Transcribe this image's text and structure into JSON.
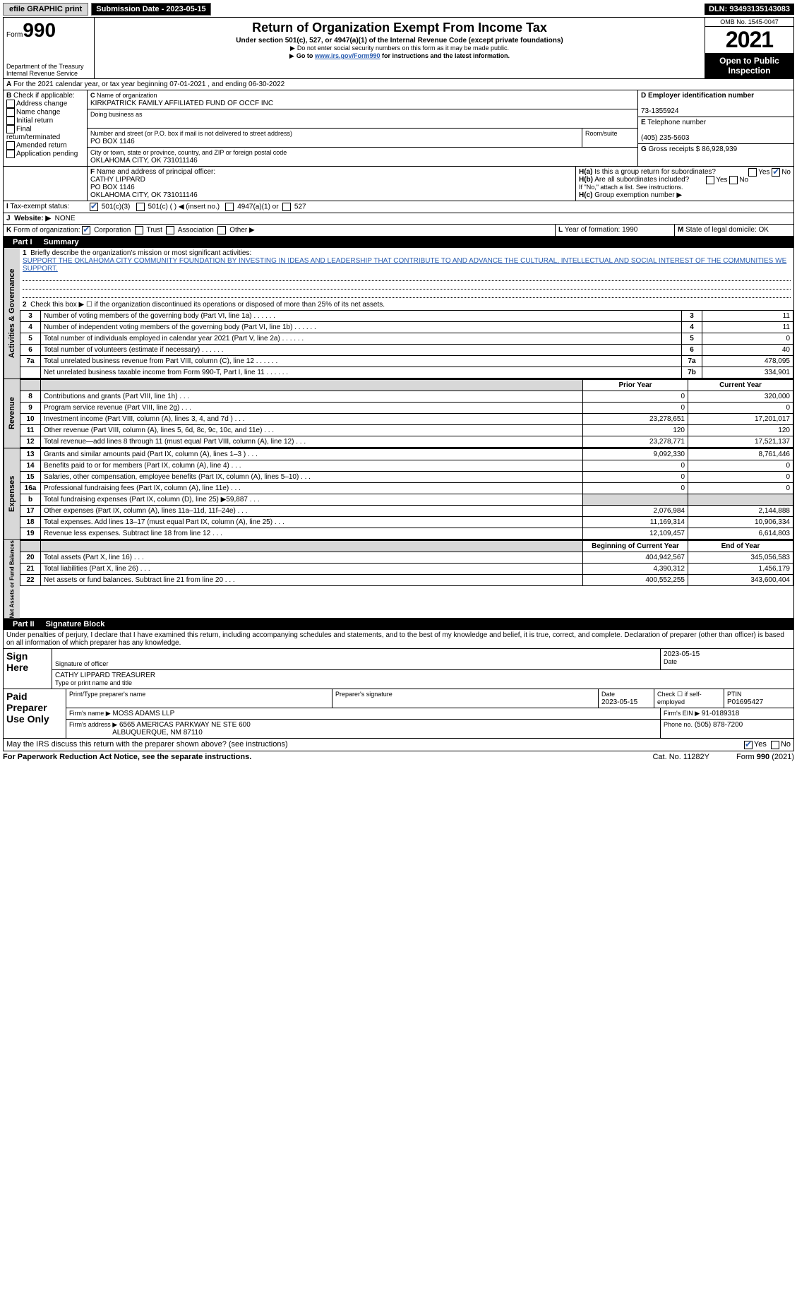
{
  "topbar": {
    "efile": "efile GRAPHIC print",
    "subdate_label": "Submission Date - 2023-05-15",
    "dln": "DLN: 93493135143083"
  },
  "header": {
    "form_label": "Form",
    "form_num": "990",
    "dept": "Department of the Treasury\nInternal Revenue Service",
    "title": "Return of Organization Exempt From Income Tax",
    "subtitle": "Under section 501(c), 527, or 4947(a)(1) of the Internal Revenue Code (except private foundations)",
    "note1": "Do not enter social security numbers on this form as it may be made public.",
    "note2_pre": "Go to ",
    "note2_link": "www.irs.gov/Form990",
    "note2_post": " for instructions and the latest information.",
    "omb": "OMB No. 1545-0047",
    "year": "2021",
    "otp": "Open to Public Inspection"
  },
  "A": {
    "text": "For the 2021 calendar year, or tax year beginning 07-01-2021    , and ending 06-30-2022"
  },
  "B": {
    "label": "Check if applicable:",
    "opts": [
      "Address change",
      "Name change",
      "Initial return",
      "Final return/terminated",
      "Amended return",
      "Application pending"
    ]
  },
  "C": {
    "name_label": "Name of organization",
    "name": "KIRKPATRICK FAMILY AFFILIATED FUND OF OCCF INC",
    "dba_label": "Doing business as",
    "addr_label": "Number and street (or P.O. box if mail is not delivered to street address)",
    "addr": "PO BOX 1146",
    "room": "Room/suite",
    "city_label": "City or town, state or province, country, and ZIP or foreign postal code",
    "city": "OKLAHOMA CITY, OK  731011146"
  },
  "D": {
    "label": "Employer identification number",
    "val": "73-1355924"
  },
  "E": {
    "label": "Telephone number",
    "val": "(405) 235-5603"
  },
  "G": {
    "label": "Gross receipts $",
    "val": "86,928,939"
  },
  "F": {
    "label": "Name and address of principal officer:",
    "name": "CATHY LIPPARD",
    "addr": "PO BOX 1146",
    "city": "OKLAHOMA CITY, OK  731011146"
  },
  "H": {
    "a": "Is this a group return for subordinates?",
    "b": "Are all subordinates included?",
    "b_note": "If \"No,\" attach a list. See instructions.",
    "c": "Group exemption number ▶",
    "yes": "Yes",
    "no": "No"
  },
  "I": {
    "label": "Tax-exempt status:",
    "c3": "501(c)(3)",
    "c": "501(c) (  ) ◀ (insert no.)",
    "a1": "4947(a)(1) or",
    "527": "527"
  },
  "J": {
    "label": "Website: ▶",
    "val": "NONE"
  },
  "K": {
    "label": "Form of organization:",
    "corp": "Corporation",
    "trust": "Trust",
    "assoc": "Association",
    "other": "Other ▶"
  },
  "L": {
    "label": "Year of formation:",
    "val": "1990"
  },
  "M": {
    "label": "State of legal domicile:",
    "val": "OK"
  },
  "part1": {
    "title": "Part I",
    "sub": "Summary"
  },
  "summary": {
    "q1": "Briefly describe the organization's mission or most significant activities:",
    "mission": "SUPPORT THE OKLAHOMA CITY COMMUNITY FOUNDATION BY INVESTING IN IDEAS AND LEADERSHIP THAT CONTRIBUTE TO AND ADVANCE THE CULTURAL, INTELLECTUAL AND SOCIAL INTEREST OF THE COMMUNITIES WE SUPPORT.",
    "q2": "Check this box ▶ ☐ if the organization discontinued its operations or disposed of more than 25% of its net assets.",
    "rows_a": [
      {
        "n": "3",
        "t": "Number of voting members of the governing body (Part VI, line 1a)",
        "box": "3",
        "v": "11"
      },
      {
        "n": "4",
        "t": "Number of independent voting members of the governing body (Part VI, line 1b)",
        "box": "4",
        "v": "11"
      },
      {
        "n": "5",
        "t": "Total number of individuals employed in calendar year 2021 (Part V, line 2a)",
        "box": "5",
        "v": "0"
      },
      {
        "n": "6",
        "t": "Total number of volunteers (estimate if necessary)",
        "box": "6",
        "v": "40"
      },
      {
        "n": "7a",
        "t": "Total unrelated business revenue from Part VIII, column (C), line 12",
        "box": "7a",
        "v": "478,095"
      },
      {
        "n": "",
        "t": "Net unrelated business taxable income from Form 990-T, Part I, line 11",
        "box": "7b",
        "v": "334,901"
      }
    ],
    "prior": "Prior Year",
    "current": "Current Year",
    "rev": [
      {
        "n": "8",
        "t": "Contributions and grants (Part VIII, line 1h)",
        "p": "0",
        "c": "320,000"
      },
      {
        "n": "9",
        "t": "Program service revenue (Part VIII, line 2g)",
        "p": "0",
        "c": "0"
      },
      {
        "n": "10",
        "t": "Investment income (Part VIII, column (A), lines 3, 4, and 7d )",
        "p": "23,278,651",
        "c": "17,201,017"
      },
      {
        "n": "11",
        "t": "Other revenue (Part VIII, column (A), lines 5, 6d, 8c, 9c, 10c, and 11e)",
        "p": "120",
        "c": "120"
      },
      {
        "n": "12",
        "t": "Total revenue—add lines 8 through 11 (must equal Part VIII, column (A), line 12)",
        "p": "23,278,771",
        "c": "17,521,137"
      }
    ],
    "exp": [
      {
        "n": "13",
        "t": "Grants and similar amounts paid (Part IX, column (A), lines 1–3 )",
        "p": "9,092,330",
        "c": "8,761,446"
      },
      {
        "n": "14",
        "t": "Benefits paid to or for members (Part IX, column (A), line 4)",
        "p": "0",
        "c": "0"
      },
      {
        "n": "15",
        "t": "Salaries, other compensation, employee benefits (Part IX, column (A), lines 5–10)",
        "p": "0",
        "c": "0"
      },
      {
        "n": "16a",
        "t": "Professional fundraising fees (Part IX, column (A), line 11e)",
        "p": "0",
        "c": "0"
      },
      {
        "n": "b",
        "t": "Total fundraising expenses (Part IX, column (D), line 25) ▶59,887",
        "p": "",
        "c": "",
        "shade": true
      },
      {
        "n": "17",
        "t": "Other expenses (Part IX, column (A), lines 11a–11d, 11f–24e)",
        "p": "2,076,984",
        "c": "2,144,888"
      },
      {
        "n": "18",
        "t": "Total expenses. Add lines 13–17 (must equal Part IX, column (A), line 25)",
        "p": "11,169,314",
        "c": "10,906,334"
      },
      {
        "n": "19",
        "t": "Revenue less expenses. Subtract line 18 from line 12",
        "p": "12,109,457",
        "c": "6,614,803"
      }
    ],
    "bcy": "Beginning of Current Year",
    "eoy": "End of Year",
    "net": [
      {
        "n": "20",
        "t": "Total assets (Part X, line 16)",
        "p": "404,942,567",
        "c": "345,056,583"
      },
      {
        "n": "21",
        "t": "Total liabilities (Part X, line 26)",
        "p": "4,390,312",
        "c": "1,456,179"
      },
      {
        "n": "22",
        "t": "Net assets or fund balances. Subtract line 21 from line 20",
        "p": "400,552,255",
        "c": "343,600,404"
      }
    ]
  },
  "sidelabels": {
    "ag": "Activities & Governance",
    "rev": "Revenue",
    "exp": "Expenses",
    "net": "Net Assets or Fund Balances"
  },
  "part2": {
    "title": "Part II",
    "sub": "Signature Block"
  },
  "sig": {
    "decl": "Under penalties of perjury, I declare that I have examined this return, including accompanying schedules and statements, and to the best of my knowledge and belief, it is true, correct, and complete. Declaration of preparer (other than officer) is based on all information of which preparer has any knowledge.",
    "sign_here": "Sign Here",
    "sig_officer": "Signature of officer",
    "date": "2023-05-15",
    "name": "CATHY LIPPARD  TREASURER",
    "name_label": "Type or print name and title",
    "paid": "Paid Preparer Use Only",
    "print_label": "Print/Type preparer's name",
    "prep_sig": "Preparer's signature",
    "date_label": "Date",
    "date2": "2023-05-15",
    "check_self": "Check ☐ if self-employed",
    "ptin_label": "PTIN",
    "ptin": "P01695427",
    "firm_name_label": "Firm's name    ▶",
    "firm_name": "MOSS ADAMS LLP",
    "firm_ein_label": "Firm's EIN ▶",
    "firm_ein": "91-0189318",
    "firm_addr_label": "Firm's address ▶",
    "firm_addr": "6565 AMERICAS PARKWAY NE STE 600",
    "firm_city": "ALBUQUERQUE, NM  87110",
    "phone_label": "Phone no.",
    "phone": "(505) 878-7200",
    "discuss": "May the IRS discuss this return with the preparer shown above? (see instructions)",
    "yes": "Yes",
    "no": "No"
  },
  "footer": {
    "pra": "For Paperwork Reduction Act Notice, see the separate instructions.",
    "cat": "Cat. No. 11282Y",
    "form": "Form 990 (2021)"
  }
}
